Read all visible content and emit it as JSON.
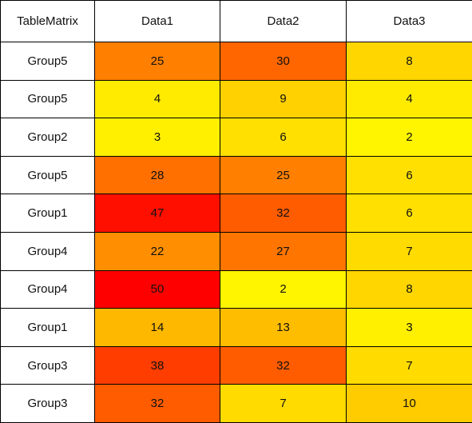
{
  "chart_data": {
    "type": "heatmap",
    "corner_label": "TableMatrix",
    "columns": [
      "Data1",
      "Data2",
      "Data3"
    ],
    "rows": [
      {
        "label": "Group5",
        "values": [
          25,
          30,
          8
        ]
      },
      {
        "label": "Group5",
        "values": [
          4,
          9,
          4
        ]
      },
      {
        "label": "Group2",
        "values": [
          3,
          6,
          2
        ]
      },
      {
        "label": "Group5",
        "values": [
          28,
          25,
          6
        ]
      },
      {
        "label": "Group1",
        "values": [
          47,
          32,
          6
        ]
      },
      {
        "label": "Group4",
        "values": [
          22,
          27,
          7
        ]
      },
      {
        "label": "Group4",
        "values": [
          50,
          2,
          8
        ]
      },
      {
        "label": "Group1",
        "values": [
          14,
          13,
          3
        ]
      },
      {
        "label": "Group3",
        "values": [
          38,
          32,
          7
        ]
      },
      {
        "label": "Group3",
        "values": [
          32,
          7,
          10
        ]
      }
    ],
    "color_scale": {
      "low_color": "#ffff00",
      "high_color": "#ff0000",
      "domain": [
        0,
        50
      ]
    }
  }
}
